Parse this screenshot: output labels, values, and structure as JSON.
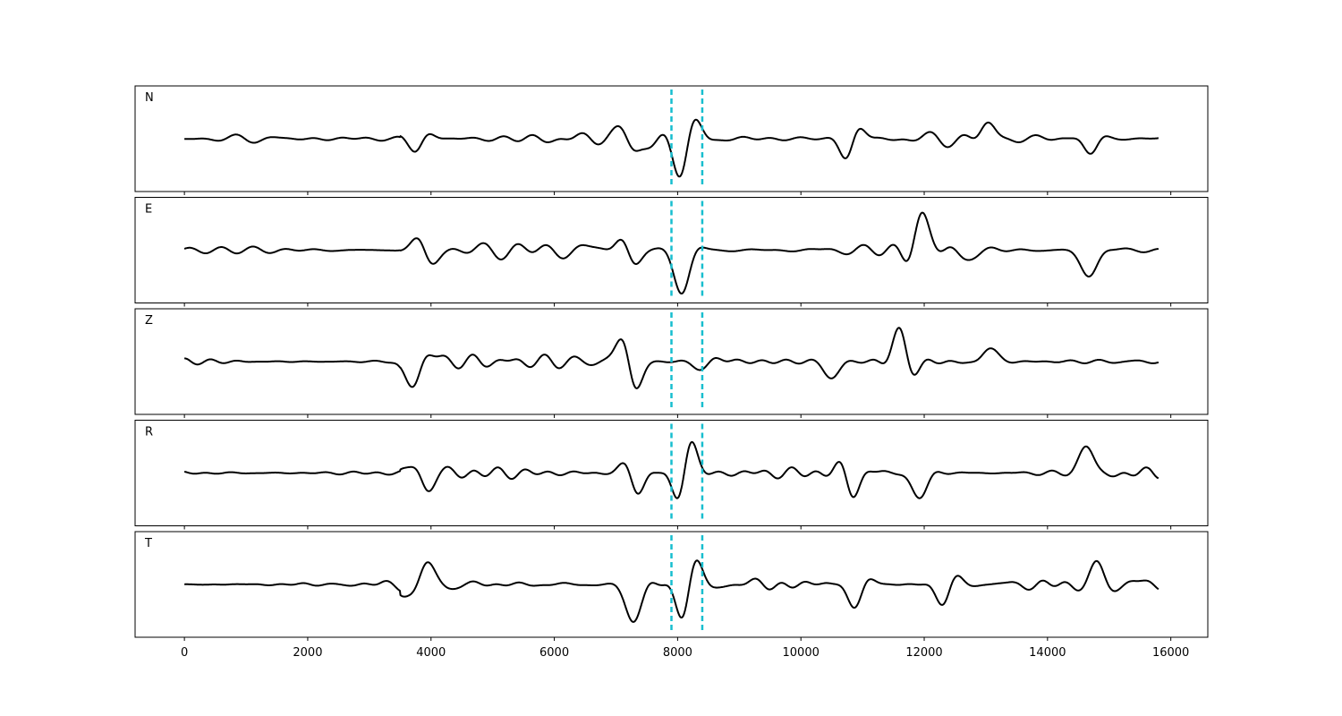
{
  "chart_data": {
    "type": "line",
    "xlim": [
      -800,
      16600
    ],
    "x_ticks": [
      0,
      2000,
      4000,
      6000,
      8000,
      10000,
      12000,
      14000,
      16000
    ],
    "x_tick_labels": [
      "0",
      "2000",
      "4000",
      "6000",
      "8000",
      "10000",
      "12000",
      "14000",
      "16000"
    ],
    "x_range": [
      0,
      15800
    ],
    "grid": false,
    "shared_x_axis": true,
    "markers": [
      {
        "x": 7900,
        "style": "dashed",
        "color": "#17becf"
      },
      {
        "x": 8400,
        "style": "dashed",
        "color": "#17becf"
      }
    ],
    "line_color": "#000000",
    "panels": [
      {
        "label": "N",
        "noise": 0.17,
        "bursts": [
          [
            3800,
            0.3
          ],
          [
            7200,
            0.7
          ],
          [
            8120,
            0.95
          ],
          [
            10800,
            0.5
          ],
          [
            13000,
            0.4
          ],
          [
            14700,
            0.35
          ]
        ]
      },
      {
        "label": "E",
        "noise": 0.17,
        "bursts": [
          [
            3900,
            0.45
          ],
          [
            7200,
            0.65
          ],
          [
            8080,
            0.9
          ],
          [
            11900,
            0.75
          ],
          [
            12500,
            0.55
          ],
          [
            14700,
            0.6
          ]
        ]
      },
      {
        "label": "Z",
        "noise": 0.14,
        "bursts": [
          [
            3780,
            0.8
          ],
          [
            7220,
            0.95
          ],
          [
            8500,
            0.3
          ],
          [
            10500,
            0.35
          ],
          [
            11650,
            0.75
          ],
          [
            13000,
            0.35
          ]
        ]
      },
      {
        "label": "R",
        "noise": 0.15,
        "bursts": [
          [
            3900,
            0.4
          ],
          [
            7300,
            0.5
          ],
          [
            8120,
            0.95
          ],
          [
            10800,
            0.5
          ],
          [
            11950,
            0.55
          ],
          [
            14650,
            0.65
          ]
        ]
      },
      {
        "label": "T",
        "noise": 0.17,
        "bursts": [
          [
            3850,
            0.55
          ],
          [
            7300,
            0.8
          ],
          [
            8150,
            0.9
          ],
          [
            10900,
            0.5
          ],
          [
            12350,
            0.5
          ],
          [
            14800,
            0.45
          ]
        ]
      }
    ]
  }
}
